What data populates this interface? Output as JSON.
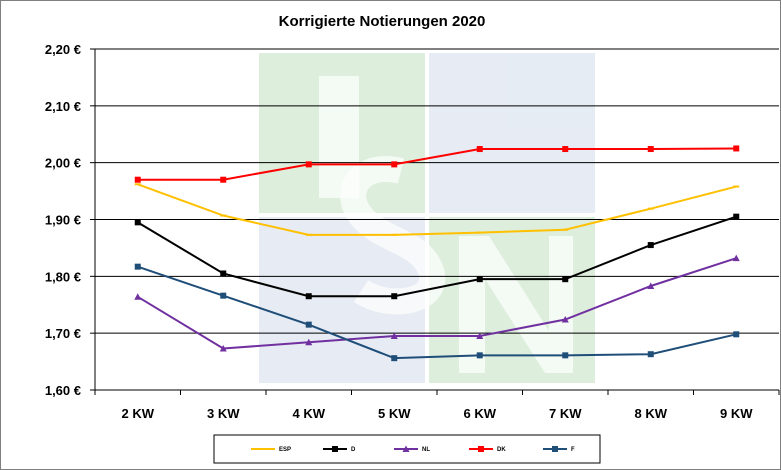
{
  "chart_data": {
    "type": "line",
    "title": "Korrigierte Notierungen 2020",
    "xlabel": "",
    "ylabel": "",
    "categories": [
      "2 KW",
      "3 KW",
      "4 KW",
      "5 KW",
      "6 KW",
      "7 KW",
      "8 KW",
      "9 KW"
    ],
    "ylim": [
      1.6,
      2.2
    ],
    "yticks": [
      1.6,
      1.7,
      1.8,
      1.9,
      2.0,
      2.1,
      2.2
    ],
    "ytick_labels": [
      "1,60 €",
      "1,70 €",
      "1,80 €",
      "1,90 €",
      "2,00 €",
      "2,10 €",
      "2,20 €"
    ],
    "grid": "horizontal",
    "legend_position": "bottom",
    "series": [
      {
        "name": "ESP",
        "color": "#ffc000",
        "marker": "dash",
        "values": [
          1.962,
          1.907,
          1.873,
          1.873,
          1.877,
          1.882,
          1.919,
          1.958
        ]
      },
      {
        "name": "D",
        "color": "#000000",
        "marker": "square",
        "values": [
          1.895,
          1.805,
          1.765,
          1.765,
          1.795,
          1.795,
          1.855,
          1.905
        ]
      },
      {
        "name": "NL",
        "color": "#7030a0",
        "marker": "triangle",
        "values": [
          1.764,
          1.673,
          1.684,
          1.695,
          1.695,
          1.724,
          1.783,
          1.832
        ]
      },
      {
        "name": "DK",
        "color": "#ff0000",
        "marker": "square",
        "values": [
          1.97,
          1.97,
          1.997,
          1.997,
          2.024,
          2.024,
          2.024,
          2.025
        ]
      },
      {
        "name": "F",
        "color": "#1f4e79",
        "marker": "square",
        "values": [
          1.817,
          1.766,
          1.715,
          1.656,
          1.661,
          1.661,
          1.663,
          1.698
        ]
      }
    ]
  },
  "watermark": {
    "text": "ISN",
    "colors": [
      "#9fcf9f",
      "#b8c8e0"
    ]
  }
}
